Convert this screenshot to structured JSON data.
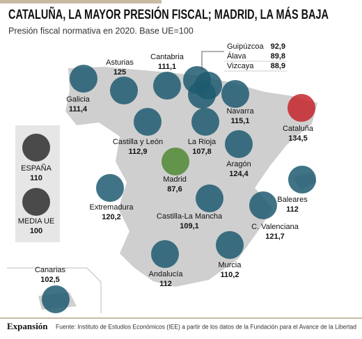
{
  "header": {
    "title": "CATALUÑA, LA MAYOR PRESIÓN FISCAL; MADRID, LA MÁS BAJA",
    "subtitle": "Presión fiscal normativa en 2020. Base UE=100"
  },
  "regions": [
    {
      "name": "Galicia",
      "value": "111,4"
    },
    {
      "name": "Asturias",
      "value": "125"
    },
    {
      "name": "Cantabria",
      "value": "111,1"
    },
    {
      "name": "Guipúzcoa",
      "value": "92,9"
    },
    {
      "name": "Álava",
      "value": "89,8"
    },
    {
      "name": "Vizcaya",
      "value": "88,9"
    },
    {
      "name": "Navarra",
      "value": "115,1"
    },
    {
      "name": "Cataluña",
      "value": "134,5"
    },
    {
      "name": "Castilla y León",
      "value": "112,9"
    },
    {
      "name": "La Rioja",
      "value": "107,8"
    },
    {
      "name": "Aragón",
      "value": "124,4"
    },
    {
      "name": "Madrid",
      "value": "87,6"
    },
    {
      "name": "Extremadura",
      "value": "120,2"
    },
    {
      "name": "Castilla-La Mancha",
      "value": "109,1"
    },
    {
      "name": "Baleares",
      "value": "112"
    },
    {
      "name": "C. Valenciana",
      "value": "121,7"
    },
    {
      "name": "Andalucía",
      "value": "112"
    },
    {
      "name": "Murcia",
      "value": "110,2"
    },
    {
      "name": "Canarias",
      "value": "102,5"
    }
  ],
  "legend": [
    {
      "name": "ESPAÑA",
      "value": "110"
    },
    {
      "name": "MEDIA UE",
      "value": "100"
    }
  ],
  "footer": {
    "brand": "Expansión",
    "source": "Fuente: Instituto de Estudios Económicos (IEE) a partir de los datos de la Fundación para el Avance de la Libertad"
  }
}
